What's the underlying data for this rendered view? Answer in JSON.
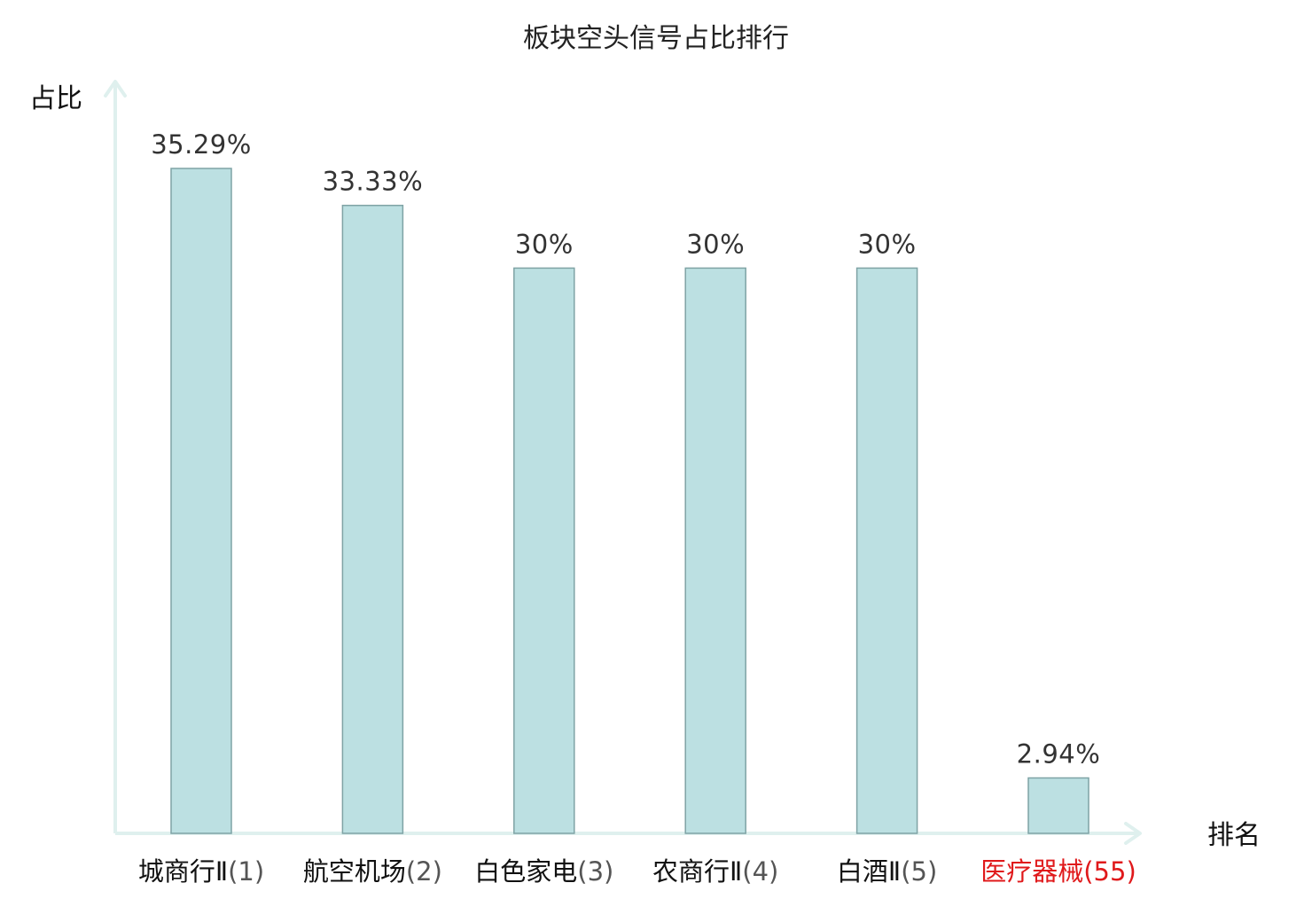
{
  "chart_data": {
    "type": "bar",
    "title": "板块空头信号占比排行",
    "ylabel": "占比",
    "xlabel": "排名",
    "ylim": [
      0,
      38
    ],
    "grid": false,
    "categories": [
      {
        "name": "城商行Ⅱ",
        "rank": "(1)"
      },
      {
        "name": "航空机场",
        "rank": "(2)"
      },
      {
        "name": "白色家电",
        "rank": "(3)"
      },
      {
        "name": "农商行Ⅱ",
        "rank": "(4)"
      },
      {
        "name": "白酒Ⅱ",
        "rank": "(5)"
      },
      {
        "name": "医疗器械",
        "rank": "(55)"
      }
    ],
    "values": [
      35.29,
      33.33,
      30,
      30,
      30,
      2.94
    ],
    "value_labels": [
      "35.29%",
      "33.33%",
      "30%",
      "30%",
      "30%",
      "2.94%"
    ],
    "highlight_index": 5,
    "colors": {
      "bar_fill": "#bce0e2",
      "bar_stroke": "#7fa3a5",
      "axis": "#dff0ee",
      "highlight": "#e0191b"
    }
  }
}
